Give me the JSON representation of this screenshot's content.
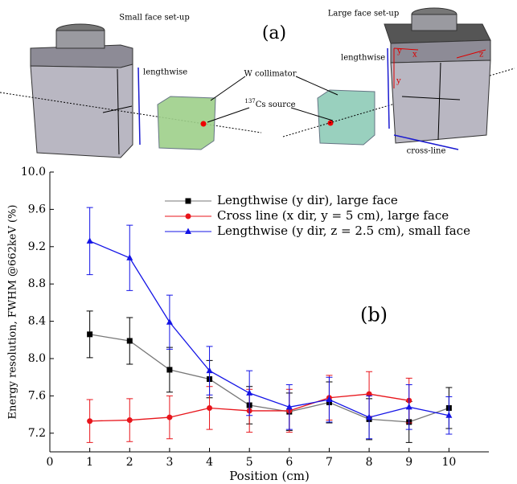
{
  "diagram": {
    "panel_label": "(a)",
    "small_face_title": "Small face set-up",
    "large_face_title": "Large face set-up",
    "left_lengthwise": "lengthwise",
    "right_lengthwise": "lengthwise",
    "collimator": "W collimator",
    "source_superscript": "137",
    "source": "Cs source",
    "cross_line": "cross-line",
    "axis_y_top": "y",
    "axis_x": "x",
    "axis_z": "z",
    "axis_y": "y"
  },
  "chart_data": {
    "type": "line",
    "annotation": "(b)",
    "x_label": "Position (cm)",
    "y_label": "Energy resolution, FWHM @662keV (%)",
    "xlim": [
      0,
      11
    ],
    "ylim": [
      7.0,
      10.0
    ],
    "xticks": [
      0,
      1,
      2,
      3,
      4,
      5,
      6,
      7,
      8,
      9,
      10
    ],
    "yticks": [
      {
        "value": 7.2,
        "label": "7.2"
      },
      7.6,
      {
        "value": 8.0,
        "label": "8.0"
      },
      8.4,
      8.8,
      9.2,
      9.6,
      {
        "value": 10.0,
        "label": "10.0"
      }
    ],
    "legend": "upper right",
    "series": [
      {
        "name": "Lengthwise (y dir), large face",
        "color": "#000000",
        "line_color": "#777777",
        "marker": "square",
        "x": [
          1,
          2,
          3,
          4,
          5,
          6,
          7,
          8,
          9,
          10
        ],
        "values": [
          8.26,
          8.19,
          7.88,
          7.78,
          7.5,
          7.43,
          7.53,
          7.35,
          7.32,
          7.47
        ],
        "errors": [
          0.25,
          0.25,
          0.24,
          0.2,
          0.2,
          0.2,
          0.22,
          0.22,
          0.22,
          0.22
        ]
      },
      {
        "name": "Cross line (x dir, y = 5 cm), large face",
        "color": "#e8151b",
        "line_color": "#e8151b",
        "marker": "circle",
        "x": [
          1,
          2,
          3,
          4,
          5,
          6,
          7,
          8,
          9
        ],
        "values": [
          7.33,
          7.34,
          7.37,
          7.47,
          7.44,
          7.44,
          7.58,
          7.62,
          7.55
        ],
        "errors": [
          0.23,
          0.23,
          0.23,
          0.23,
          0.23,
          0.23,
          0.24,
          0.24,
          0.24
        ]
      },
      {
        "name": "Lengthwise (y dir, z = 2.5 cm), small face",
        "color": "#1414e6",
        "line_color": "#1414e6",
        "marker": "triangle",
        "x": [
          1,
          2,
          3,
          4,
          5,
          6,
          7,
          8,
          9,
          10
        ],
        "values": [
          9.26,
          9.08,
          8.39,
          7.87,
          7.63,
          7.48,
          7.56,
          7.37,
          7.48,
          7.39
        ],
        "errors": [
          0.36,
          0.35,
          0.29,
          0.26,
          0.24,
          0.24,
          0.24,
          0.23,
          0.24,
          0.2
        ]
      }
    ]
  }
}
